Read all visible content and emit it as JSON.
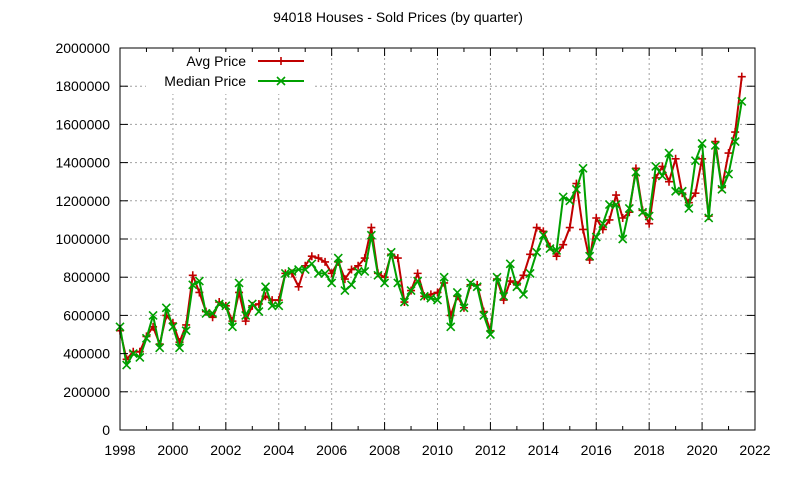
{
  "chart_data": {
    "type": "line",
    "title": "94018 Houses - Sold Prices (by quarter)",
    "xlabel": "",
    "ylabel": "",
    "xlim": [
      1998,
      2022
    ],
    "ylim": [
      0,
      2000000
    ],
    "xticks": [
      1998,
      2000,
      2002,
      2004,
      2006,
      2008,
      2010,
      2012,
      2014,
      2016,
      2018,
      2020,
      2022
    ],
    "yticks": [
      0,
      200000,
      400000,
      600000,
      800000,
      1000000,
      1200000,
      1400000,
      1600000,
      1800000,
      2000000
    ],
    "grid": true,
    "legend_position": "top-left",
    "x": [
      1998.0,
      1998.25,
      1998.5,
      1998.75,
      1999.0,
      1999.25,
      1999.5,
      1999.75,
      2000.0,
      2000.25,
      2000.5,
      2000.75,
      2001.0,
      2001.25,
      2001.5,
      2001.75,
      2002.0,
      2002.25,
      2002.5,
      2002.75,
      2003.0,
      2003.25,
      2003.5,
      2003.75,
      2004.0,
      2004.25,
      2004.5,
      2004.75,
      2005.0,
      2005.25,
      2005.5,
      2005.75,
      2006.0,
      2006.25,
      2006.5,
      2006.75,
      2007.0,
      2007.25,
      2007.5,
      2007.75,
      2008.0,
      2008.25,
      2008.5,
      2008.75,
      2009.0,
      2009.25,
      2009.5,
      2009.75,
      2010.0,
      2010.25,
      2010.5,
      2010.75,
      2011.0,
      2011.25,
      2011.5,
      2011.75,
      2012.0,
      2012.25,
      2012.5,
      2012.75,
      2013.0,
      2013.25,
      2013.5,
      2013.75,
      2014.0,
      2014.25,
      2014.5,
      2014.75,
      2015.0,
      2015.25,
      2015.5,
      2015.75,
      2016.0,
      2016.25,
      2016.5,
      2016.75,
      2017.0,
      2017.25,
      2017.5,
      2017.75,
      2018.0,
      2018.25,
      2018.5,
      2018.75,
      2019.0,
      2019.25,
      2019.5,
      2019.75,
      2020.0,
      2020.25,
      2020.5,
      2020.75,
      2021.0,
      2021.25,
      2021.5
    ],
    "series": [
      {
        "name": "Avg Price",
        "color": "#c00000",
        "marker": "plus",
        "values": [
          520000,
          370000,
          410000,
          410000,
          490000,
          540000,
          450000,
          600000,
          560000,
          460000,
          550000,
          810000,
          720000,
          620000,
          590000,
          670000,
          650000,
          570000,
          720000,
          570000,
          650000,
          660000,
          700000,
          680000,
          680000,
          820000,
          820000,
          750000,
          860000,
          910000,
          900000,
          880000,
          820000,
          880000,
          790000,
          840000,
          860000,
          900000,
          1060000,
          820000,
          800000,
          920000,
          900000,
          670000,
          730000,
          820000,
          700000,
          710000,
          720000,
          770000,
          600000,
          700000,
          640000,
          760000,
          760000,
          620000,
          520000,
          790000,
          680000,
          780000,
          760000,
          810000,
          920000,
          1060000,
          1040000,
          960000,
          910000,
          970000,
          1060000,
          1290000,
          1050000,
          890000,
          1110000,
          1050000,
          1100000,
          1230000,
          1110000,
          1140000,
          1370000,
          1150000,
          1080000,
          1320000,
          1380000,
          1300000,
          1420000,
          1240000,
          1190000,
          1240000,
          1420000,
          1120000,
          1510000,
          1270000,
          1450000,
          1560000,
          1850000
        ]
      },
      {
        "name": "Median Price",
        "color": "#00a000",
        "marker": "cross",
        "values": [
          540000,
          340000,
          400000,
          380000,
          480000,
          600000,
          430000,
          640000,
          540000,
          430000,
          520000,
          760000,
          780000,
          610000,
          610000,
          660000,
          650000,
          540000,
          770000,
          600000,
          660000,
          620000,
          750000,
          650000,
          650000,
          820000,
          830000,
          840000,
          840000,
          870000,
          820000,
          820000,
          770000,
          900000,
          730000,
          760000,
          830000,
          830000,
          1020000,
          810000,
          770000,
          930000,
          770000,
          670000,
          730000,
          780000,
          700000,
          690000,
          680000,
          800000,
          540000,
          720000,
          640000,
          770000,
          750000,
          600000,
          500000,
          800000,
          700000,
          870000,
          750000,
          710000,
          820000,
          930000,
          1020000,
          950000,
          940000,
          1220000,
          1200000,
          1260000,
          1370000,
          910000,
          1010000,
          1080000,
          1180000,
          1180000,
          1000000,
          1160000,
          1350000,
          1140000,
          1120000,
          1380000,
          1330000,
          1450000,
          1250000,
          1250000,
          1160000,
          1410000,
          1500000,
          1110000,
          1490000,
          1260000,
          1340000,
          1510000,
          1720000
        ]
      }
    ]
  }
}
